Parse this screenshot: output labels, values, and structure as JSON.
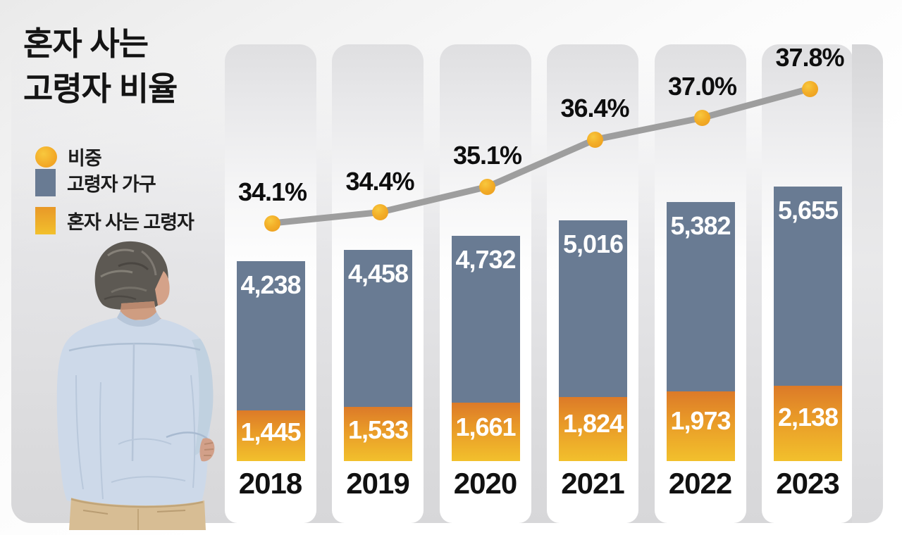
{
  "title": {
    "line1": "혼자 사는",
    "line2": "고령자 비율"
  },
  "legend": {
    "items": [
      {
        "label": "비중",
        "swatch": "circle",
        "color": "#F2A524"
      },
      {
        "label": "고령자 가구",
        "swatch": "square",
        "color": "#697B93"
      },
      {
        "label": "혼자 사는 고령자",
        "swatch": "square",
        "color": "#E89A28"
      }
    ]
  },
  "figure": {
    "name": "elderly-person-back-view"
  },
  "chart_data": {
    "type": "bar",
    "subtype": "stacked-bars-with-percentage-line",
    "title": "혼자 사는 고령자 비율",
    "categories": [
      "2018",
      "2019",
      "2020",
      "2021",
      "2022",
      "2023"
    ],
    "series": [
      {
        "name": "고령자 가구",
        "type": "bar",
        "stack_position": "top",
        "values": [
          4238,
          4458,
          4732,
          5016,
          5382,
          5655
        ]
      },
      {
        "name": "혼자 사는 고령자",
        "type": "bar",
        "stack_position": "bottom",
        "values": [
          1445,
          1533,
          1661,
          1824,
          1973,
          2138
        ]
      },
      {
        "name": "비중",
        "type": "line",
        "unit": "%",
        "values": [
          34.1,
          34.4,
          35.1,
          36.4,
          37.0,
          37.8
        ]
      }
    ],
    "value_label_format": "thousands-comma",
    "legend_position": "left",
    "grid": false,
    "colors": {
      "household_bar": "#697B93",
      "single_bar_top": "#DC7A28",
      "single_bar_mid": "#E89828",
      "single_bar_bottom": "#F2C02C",
      "trend_line": "#9E9E9E",
      "dot_outer": "#EA9A1E",
      "dot_inner": "#F8C83E",
      "bar_value_text": "#FFFFFF",
      "axis_text": "#111111"
    }
  }
}
